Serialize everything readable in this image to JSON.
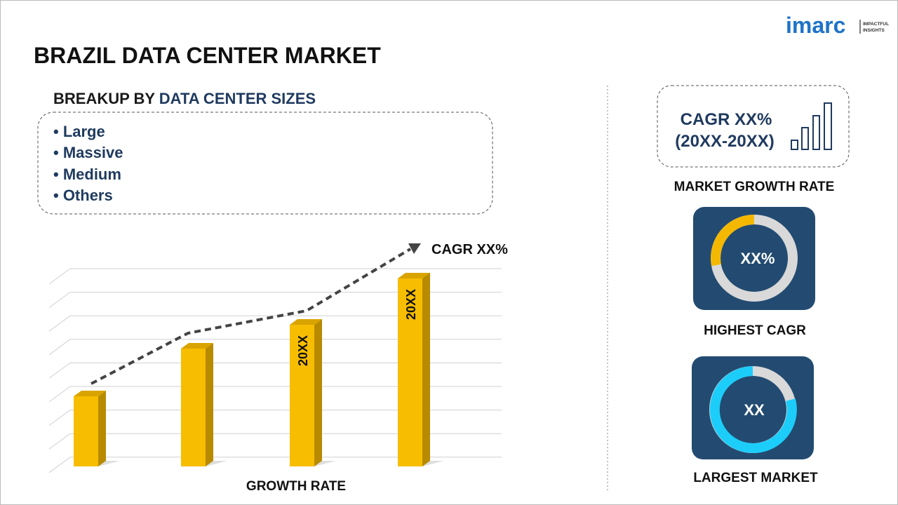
{
  "header": {
    "title": "BRAZIL DATA CENTER MARKET",
    "logo": {
      "name": "imarc",
      "tagline": [
        "IMPACTFUL",
        "INSIGHTS"
      ]
    }
  },
  "breakup": {
    "prefix": "BREAKUP BY",
    "heading": "DATA CENTER SIZES",
    "items": [
      "• Large",
      "• Massive",
      "• Medium",
      "• Others"
    ]
  },
  "growth_chart": {
    "trend_label": "CAGR XX%",
    "bar_labels": [
      "20XX",
      "20XX"
    ],
    "axis_label": "GROWTH RATE"
  },
  "market_growth": {
    "cagr": "CAGR XX%",
    "period": "(20XX-20XX)",
    "label": "MARKET GROWTH RATE"
  },
  "highest_cagr": {
    "value": "XX%",
    "label": "HIGHEST CAGR"
  },
  "largest_market": {
    "value": "XX",
    "label": "LARGEST MARKET"
  }
}
